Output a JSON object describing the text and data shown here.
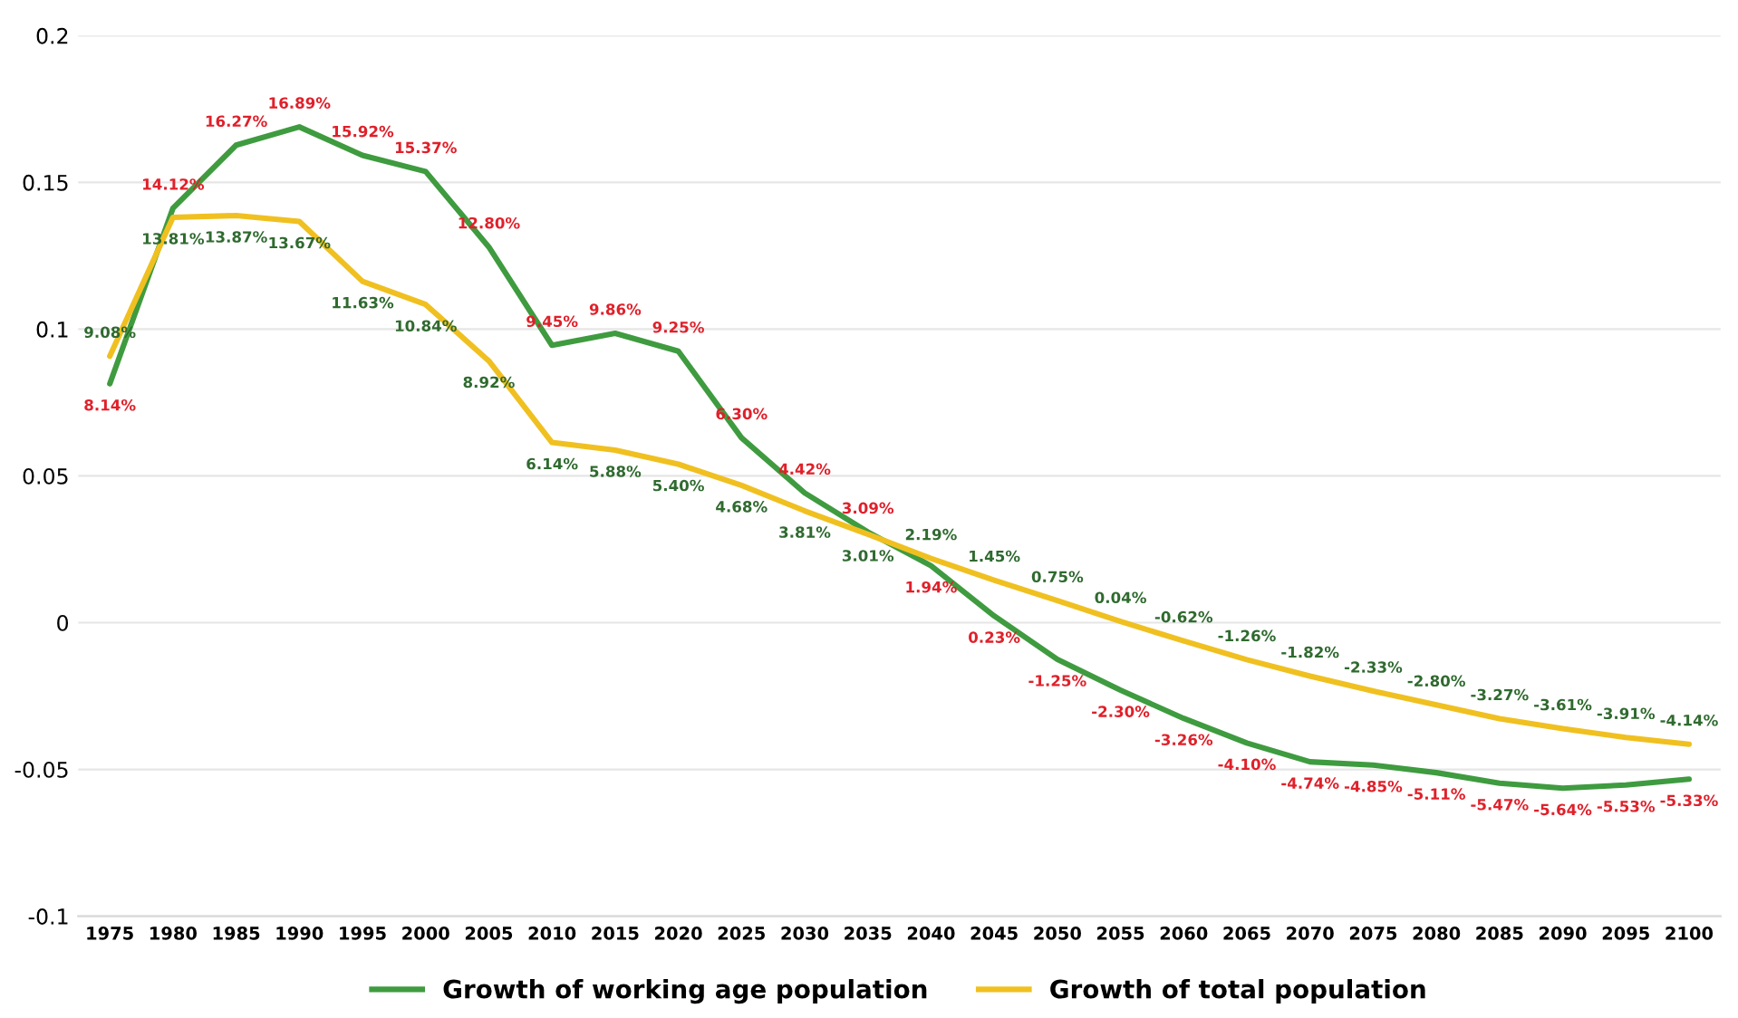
{
  "chart_data": {
    "type": "line",
    "categories": [
      "1975",
      "1980",
      "1985",
      "1990",
      "1995",
      "2000",
      "2005",
      "2010",
      "2015",
      "2020",
      "2025",
      "2030",
      "2035",
      "2040",
      "2045",
      "2050",
      "2055",
      "2060",
      "2065",
      "2070",
      "2075",
      "2080",
      "2085",
      "2090",
      "2095",
      "2100"
    ],
    "series": [
      {
        "name": "Growth of working age population",
        "color": "#3f9b3f",
        "values": [
          0.0814,
          0.1412,
          0.1627,
          0.1689,
          0.1592,
          0.1537,
          0.128,
          0.0945,
          0.0986,
          0.0925,
          0.063,
          0.0442,
          0.0309,
          0.0194,
          0.0023,
          -0.0125,
          -0.023,
          -0.0326,
          -0.041,
          -0.0474,
          -0.0485,
          -0.0511,
          -0.0547,
          -0.0564,
          -0.0553,
          -0.0533
        ],
        "value_labels": [
          "8.14%",
          "14.12%",
          "16.27%",
          "16.89%",
          "15.92%",
          "15.37%",
          "12.80%",
          "9.45%",
          "9.86%",
          "9.25%",
          "6.30%",
          "4.42%",
          "3.09%",
          "1.94%",
          "0.23%",
          "-1.25%",
          "-2.30%",
          "-3.26%",
          "-4.10%",
          "-4.74%",
          "-4.85%",
          "-5.11%",
          "-5.47%",
          "-5.64%",
          "-5.53%",
          "-5.33%"
        ]
      },
      {
        "name": "Growth of total population",
        "color": "#f0c020",
        "values": [
          0.0908,
          0.1381,
          0.1387,
          0.1367,
          0.1163,
          0.1084,
          0.0892,
          0.0614,
          0.0588,
          0.054,
          0.0468,
          0.0381,
          0.0301,
          0.0219,
          0.0145,
          0.0075,
          0.0004,
          -0.0062,
          -0.0126,
          -0.0182,
          -0.0233,
          -0.028,
          -0.0327,
          -0.0361,
          -0.0391,
          -0.0414
        ],
        "value_labels": [
          "9.08%",
          "13.81%",
          "13.87%",
          "13.67%",
          "11.63%",
          "10.84%",
          "8.92%",
          "6.14%",
          "5.88%",
          "5.40%",
          "4.68%",
          "3.81%",
          "3.01%",
          "2.19%",
          "1.45%",
          "0.75%",
          "0.04%",
          "-0.62%",
          "-1.26%",
          "-1.82%",
          "-2.33%",
          "-2.80%",
          "-3.27%",
          "-3.61%",
          "-3.91%",
          "-4.14%"
        ]
      }
    ],
    "ylim": [
      -0.1,
      0.2
    ],
    "yticks": [
      -0.1,
      -0.05,
      0,
      0.05,
      0.1,
      0.15,
      0.2
    ],
    "grid": "y",
    "legend": "bottom",
    "marker": "none",
    "line_style": "solid"
  }
}
